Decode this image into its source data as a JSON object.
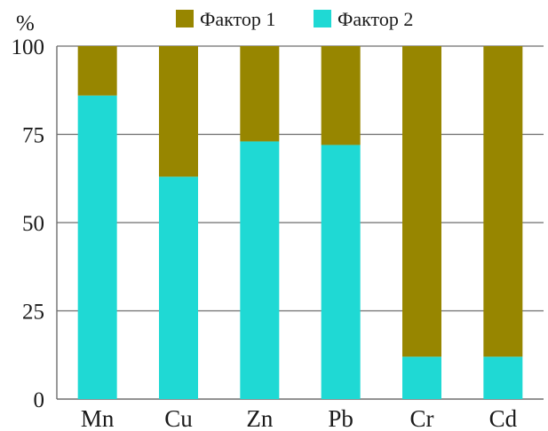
{
  "chart_data": {
    "type": "bar",
    "stacked": true,
    "unit_label": "%",
    "categories": [
      "Mn",
      "Cu",
      "Zn",
      "Pb",
      "Cr",
      "Cd"
    ],
    "series": [
      {
        "name": "Фактор 2",
        "color": "#1fd9d4",
        "values": [
          86,
          63,
          73,
          72,
          12,
          12
        ]
      },
      {
        "name": "Фактор 1",
        "color": "#978600",
        "values": [
          14,
          37,
          27,
          28,
          88,
          88
        ]
      }
    ],
    "legend_order": [
      "Фактор 1",
      "Фактор 2"
    ],
    "legend_placement": "top",
    "ylim": [
      0,
      100
    ],
    "yticks": [
      0,
      25,
      50,
      75,
      100
    ],
    "grid": true
  }
}
